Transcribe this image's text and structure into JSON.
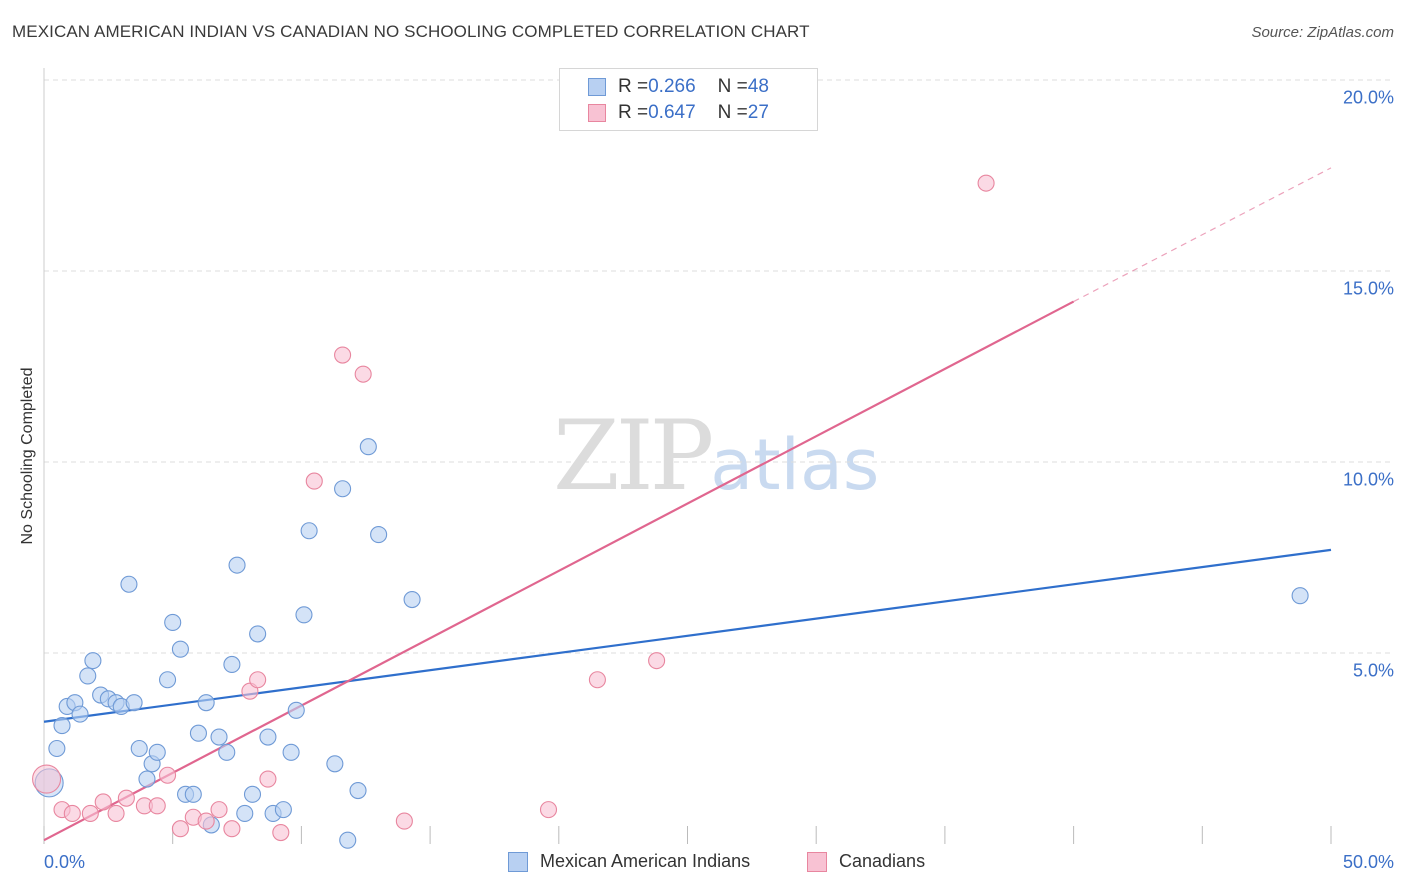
{
  "title": "MEXICAN AMERICAN INDIAN VS CANADIAN NO SCHOOLING COMPLETED CORRELATION CHART",
  "source": "Source: ZipAtlas.com",
  "watermark": {
    "zip": "ZIP",
    "atlas": "atlas"
  },
  "legend_top": [
    {
      "r_label": "R = ",
      "r_value": "0.266",
      "n_label": "N = ",
      "n_value": "48"
    },
    {
      "r_label": "R = ",
      "r_value": "0.647",
      "n_label": "N = ",
      "n_value": "27"
    }
  ],
  "colors": {
    "blue_fill": "#b8d0f2",
    "blue_stroke": "#6f9ad6",
    "blue_line": "#2f6fcc",
    "pink_fill": "#f8c2d3",
    "pink_stroke": "#e8869f",
    "pink_line": "#e0668f",
    "tick_text": "#3b6fc7",
    "grid": "#dddddd"
  },
  "chart_data": {
    "type": "scatter",
    "title": "MEXICAN AMERICAN INDIAN VS CANADIAN NO SCHOOLING COMPLETED CORRELATION CHART",
    "xlabel": "",
    "ylabel": "No Schooling Completed",
    "xlim": [
      0,
      50
    ],
    "ylim": [
      0,
      20
    ],
    "x_tick_labels": [
      "0.0%",
      "50.0%"
    ],
    "y_ticks": [
      5,
      10,
      15,
      20
    ],
    "y_tick_labels": [
      "5.0%",
      "10.0%",
      "15.0%",
      "20.0%"
    ],
    "grid": true,
    "series": [
      {
        "name": "Mexican American Indians",
        "r": 0.266,
        "n": 48,
        "trend": {
          "x": [
            0,
            50
          ],
          "y": [
            3.2,
            7.7
          ]
        },
        "points": [
          [
            0.2,
            1.6,
            "big"
          ],
          [
            0.5,
            2.5
          ],
          [
            0.7,
            3.1
          ],
          [
            0.9,
            3.6
          ],
          [
            1.2,
            3.7
          ],
          [
            1.4,
            3.4
          ],
          [
            1.7,
            4.4
          ],
          [
            1.9,
            4.8
          ],
          [
            2.2,
            3.9
          ],
          [
            2.5,
            3.8
          ],
          [
            2.8,
            3.7
          ],
          [
            3.0,
            3.6
          ],
          [
            3.3,
            6.8
          ],
          [
            3.5,
            3.7
          ],
          [
            3.7,
            2.5
          ],
          [
            4.0,
            1.7
          ],
          [
            4.2,
            2.1
          ],
          [
            4.4,
            2.4
          ],
          [
            4.8,
            4.3
          ],
          [
            5.0,
            5.8
          ],
          [
            5.3,
            5.1
          ],
          [
            5.5,
            1.3
          ],
          [
            5.8,
            1.3
          ],
          [
            6.0,
            2.9
          ],
          [
            6.3,
            3.7
          ],
          [
            6.5,
            0.5
          ],
          [
            6.8,
            2.8
          ],
          [
            7.1,
            2.4
          ],
          [
            7.3,
            4.7
          ],
          [
            7.5,
            7.3
          ],
          [
            7.8,
            0.8
          ],
          [
            8.1,
            1.3
          ],
          [
            8.3,
            5.5
          ],
          [
            8.7,
            2.8
          ],
          [
            8.9,
            0.8
          ],
          [
            9.3,
            0.9
          ],
          [
            9.6,
            2.4
          ],
          [
            9.8,
            3.5
          ],
          [
            10.1,
            6.0
          ],
          [
            10.3,
            8.2
          ],
          [
            11.3,
            2.1
          ],
          [
            11.6,
            9.3
          ],
          [
            11.8,
            0.1
          ],
          [
            12.2,
            1.4
          ],
          [
            12.6,
            10.4
          ],
          [
            13.0,
            8.1
          ],
          [
            14.3,
            6.4
          ],
          [
            48.8,
            6.5
          ]
        ]
      },
      {
        "name": "Canadians",
        "r": 0.647,
        "n": 27,
        "trend": {
          "x": [
            0,
            40
          ],
          "y": [
            0.1,
            14.2
          ]
        },
        "trend_dashed": {
          "x": [
            40,
            50
          ],
          "y": [
            14.2,
            17.7
          ]
        },
        "points": [
          [
            0.1,
            1.7,
            "big"
          ],
          [
            0.7,
            0.9
          ],
          [
            1.1,
            0.8
          ],
          [
            1.8,
            0.8
          ],
          [
            2.3,
            1.1
          ],
          [
            2.8,
            0.8
          ],
          [
            3.2,
            1.2
          ],
          [
            3.9,
            1.0
          ],
          [
            4.4,
            1.0
          ],
          [
            4.8,
            1.8
          ],
          [
            5.3,
            0.4
          ],
          [
            5.8,
            0.7
          ],
          [
            6.3,
            0.6
          ],
          [
            6.8,
            0.9
          ],
          [
            7.3,
            0.4
          ],
          [
            8.0,
            4.0
          ],
          [
            8.3,
            4.3
          ],
          [
            8.7,
            1.7
          ],
          [
            9.2,
            0.3
          ],
          [
            10.5,
            9.5
          ],
          [
            11.6,
            12.8
          ],
          [
            12.4,
            12.3
          ],
          [
            14.0,
            0.6
          ],
          [
            19.6,
            0.9
          ],
          [
            21.5,
            4.3
          ],
          [
            23.8,
            4.8
          ],
          [
            36.6,
            17.3
          ]
        ]
      }
    ]
  }
}
